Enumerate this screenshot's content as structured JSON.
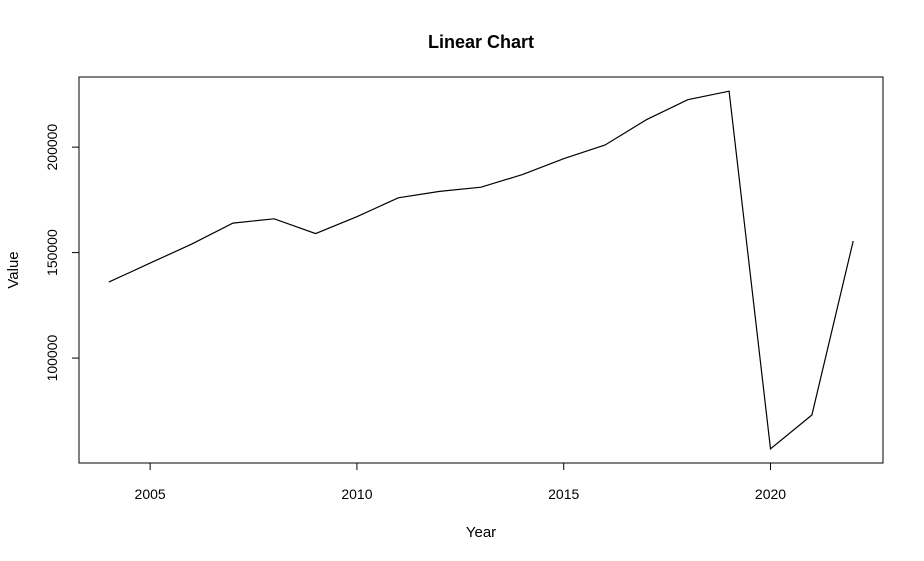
{
  "chart_data": {
    "type": "line",
    "title": "Linear Chart",
    "xlabel": "Year",
    "ylabel": "Value",
    "x": [
      2004,
      2005,
      2006,
      2007,
      2008,
      2009,
      2010,
      2011,
      2012,
      2013,
      2014,
      2015,
      2016,
      2017,
      2018,
      2019,
      2020,
      2021,
      2022
    ],
    "series": [
      {
        "values": [
          136000,
          145000,
          154000,
          164000,
          166000,
          159000,
          167000,
          176000,
          179000,
          181000,
          187000,
          194500,
          201000,
          213000,
          222500,
          226500,
          57000,
          73000,
          155500
        ]
      }
    ],
    "xlim": [
      2003.28,
      2022.72
    ],
    "ylim": [
      50250,
      233250
    ],
    "xticks": [
      2005,
      2010,
      2015,
      2020
    ],
    "yticks": [
      100000,
      150000,
      200000
    ],
    "grid": false,
    "line_color": "#000000"
  }
}
